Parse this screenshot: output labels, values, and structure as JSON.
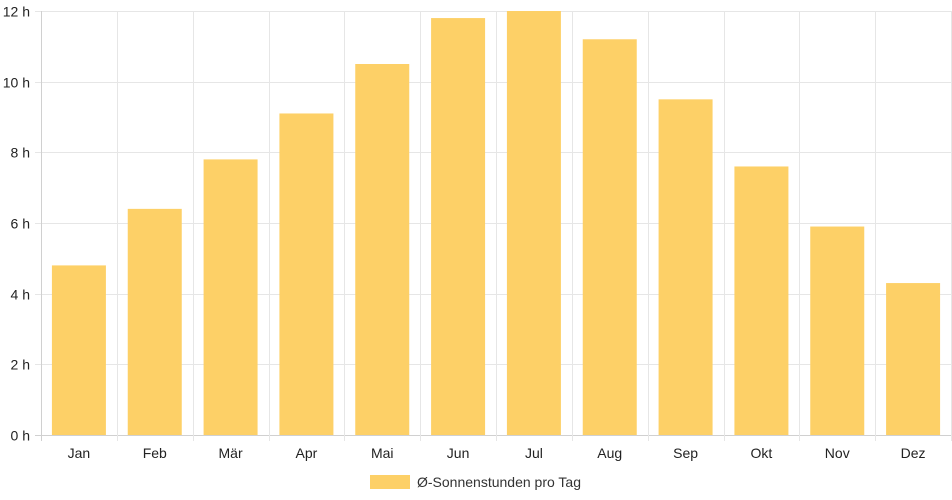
{
  "colors": {
    "bar": "#fdd067",
    "grid": "#e6e6e6",
    "axis": "#d0d0d0",
    "text": "#222222"
  },
  "chart_data": {
    "type": "bar",
    "categories": [
      "Jan",
      "Feb",
      "Mär",
      "Apr",
      "Mai",
      "Jun",
      "Jul",
      "Aug",
      "Sep",
      "Okt",
      "Nov",
      "Dez"
    ],
    "series": [
      {
        "name": "Ø-Sonnenstunden pro Tag",
        "values": [
          4.8,
          6.4,
          7.8,
          9.1,
          10.5,
          11.8,
          12.0,
          11.2,
          9.5,
          7.6,
          5.9,
          4.3
        ]
      }
    ],
    "yticks": [
      0,
      2,
      4,
      6,
      8,
      10,
      12
    ],
    "ytick_unit": " h",
    "ylim": [
      0,
      12
    ],
    "grid": true,
    "legend": "bottom-center"
  }
}
